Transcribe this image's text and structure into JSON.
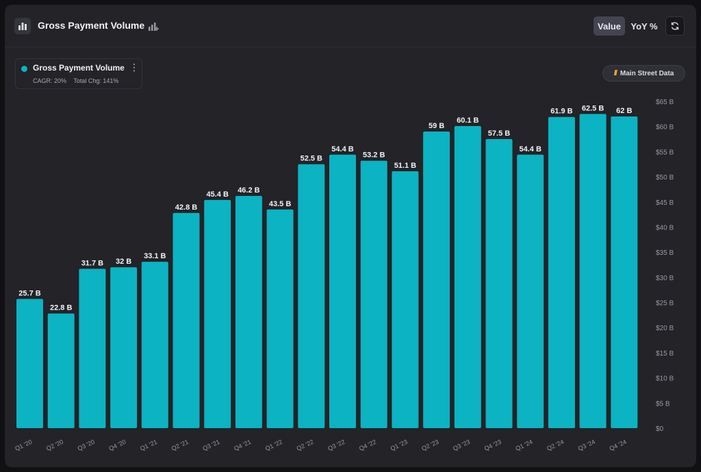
{
  "header": {
    "title": "Gross Payment Volume",
    "chart_type_icon": "bar-chart-icon",
    "add_metric_icon": "add-metric-icon",
    "toggles": [
      {
        "label": "Value",
        "active": true
      },
      {
        "label": "YoY %",
        "active": false
      }
    ],
    "refresh_icon": "refresh-icon"
  },
  "legend": {
    "name": "Gross Payment Volume",
    "color": "#0cb3c2",
    "cagr": "CAGR: 20%",
    "total_change": "Total Chg: 141%"
  },
  "source_badge": {
    "label": "Main Street Data",
    "icon": "slashes-icon"
  },
  "chart_data": {
    "type": "bar",
    "title": "Gross Payment Volume",
    "categories": [
      "Q1 '20",
      "Q2 '20",
      "Q3 '20",
      "Q4 '20",
      "Q1 '21",
      "Q2 '21",
      "Q3 '21",
      "Q4 '21",
      "Q1 '22",
      "Q2 '22",
      "Q3 '22",
      "Q4 '22",
      "Q1 '23",
      "Q2 '23",
      "Q3 '23",
      "Q4 '23",
      "Q1 '24",
      "Q2 '24",
      "Q3 '24",
      "Q4 '24"
    ],
    "series": [
      {
        "name": "Gross Payment Volume",
        "color": "#0cb3c2",
        "values": [
          25.7,
          22.8,
          31.7,
          32,
          33.1,
          42.8,
          45.4,
          46.2,
          43.5,
          52.5,
          54.4,
          53.2,
          51.1,
          59,
          60.1,
          57.5,
          54.4,
          61.9,
          62.5,
          62
        ],
        "labels": [
          "25.7 B",
          "22.8 B",
          "31.7 B",
          "32 B",
          "33.1 B",
          "42.8 B",
          "45.4 B",
          "46.2 B",
          "43.5 B",
          "52.5 B",
          "54.4 B",
          "53.2 B",
          "51.1 B",
          "59 B",
          "60.1 B",
          "57.5 B",
          "54.4 B",
          "61.9 B",
          "62.5 B",
          "62 B"
        ]
      }
    ],
    "y_ticks": [
      "$0",
      "$5 B",
      "$10 B",
      "$15 B",
      "$20 B",
      "$25 B",
      "$30 B",
      "$35 B",
      "$40 B",
      "$45 B",
      "$50 B",
      "$55 B",
      "$60 B",
      "$65 B"
    ],
    "ylim": [
      0,
      65
    ],
    "y_unit": "B",
    "y_axis_side": "right",
    "grid": false,
    "legend_position": "top-left"
  }
}
